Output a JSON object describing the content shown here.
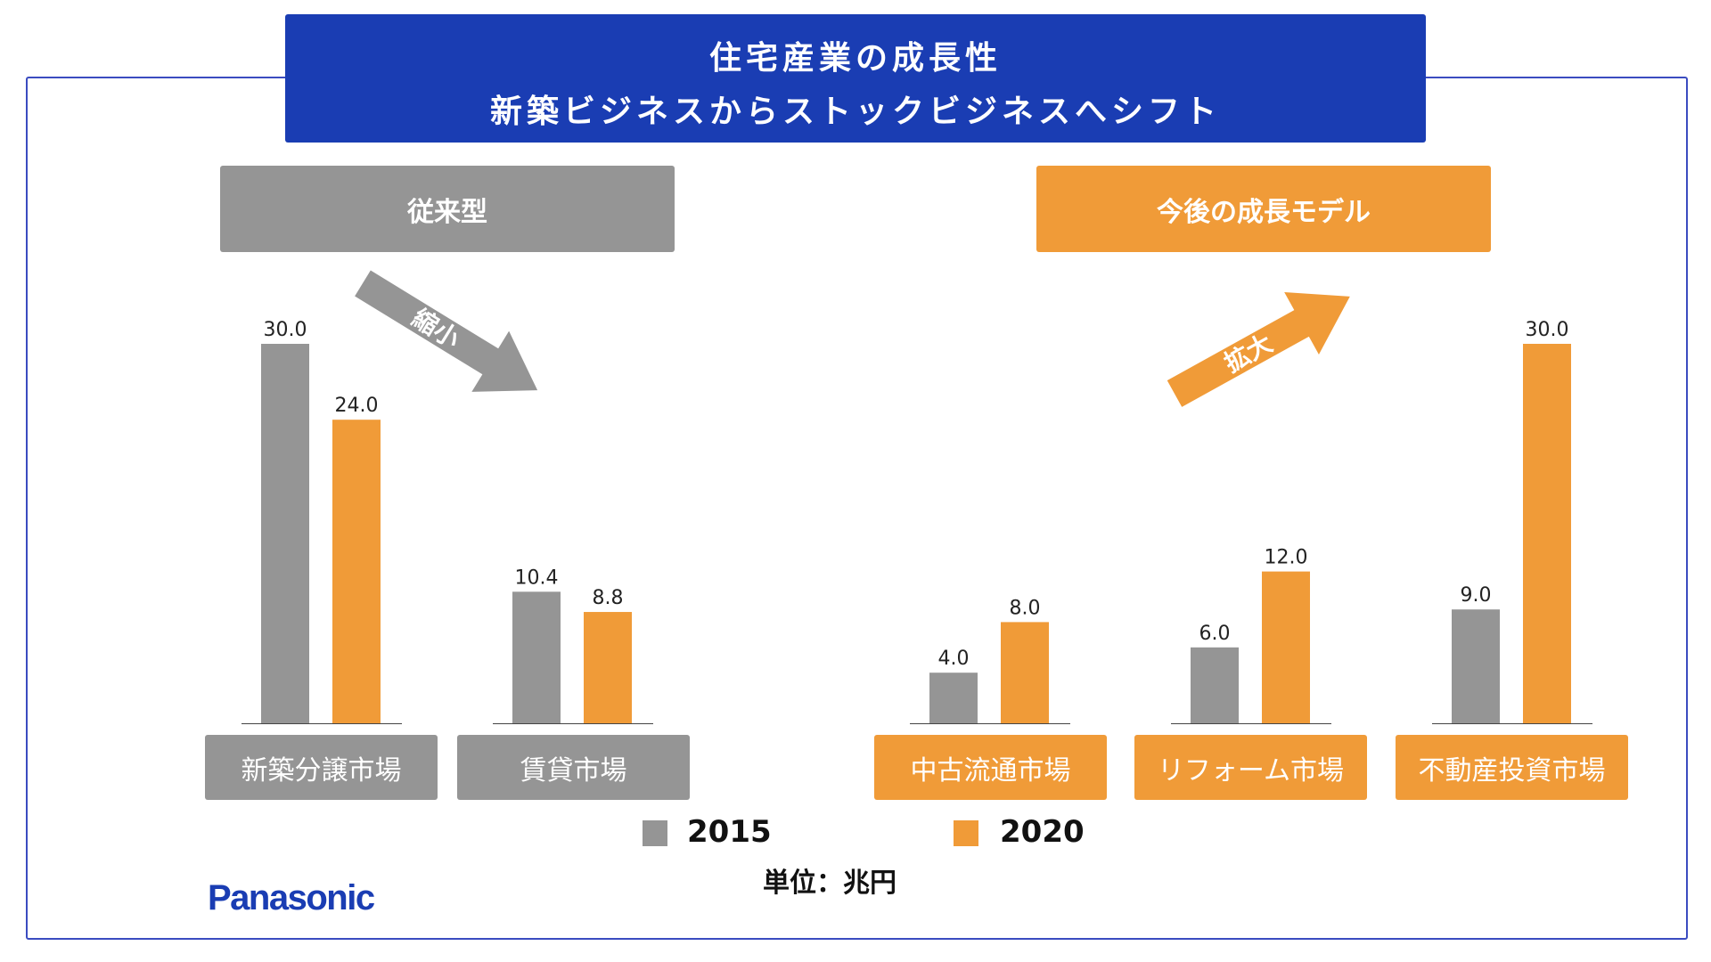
{
  "title": {
    "line1": "住宅産業の成長性",
    "line2": "新築ビジネスからストックビジネスへシフト"
  },
  "headers": {
    "left": "従来型",
    "right": "今後の成長モデル"
  },
  "arrows": {
    "shrink_label": "縮小",
    "expand_label": "拡大"
  },
  "unit": "単位：兆円",
  "logo": "Panasonic",
  "colors": {
    "gray": "#959595",
    "orange": "#f09b38",
    "blue": "#1a3db3"
  },
  "chart_data": {
    "type": "bar",
    "categories": [
      "新築分譲市場",
      "賃貸市場",
      "中古流通市場",
      "リフォーム市場",
      "不動産投資市場"
    ],
    "series": [
      {
        "name": "2015",
        "values": [
          30.0,
          10.4,
          4.0,
          6.0,
          9.0
        ]
      },
      {
        "name": "2020",
        "values": [
          24.0,
          8.8,
          8.0,
          12.0,
          30.0
        ]
      }
    ],
    "value_labels": [
      [
        "30.0",
        "10.4",
        "4.0",
        "6.0",
        "9.0"
      ],
      [
        "24.0",
        "8.8",
        "8.0",
        "12.0",
        "30.0"
      ]
    ],
    "category_groups": [
      "left",
      "left",
      "right",
      "right",
      "right"
    ],
    "ylim": [
      0,
      30
    ],
    "grid": false,
    "legend": "bottom-center"
  }
}
